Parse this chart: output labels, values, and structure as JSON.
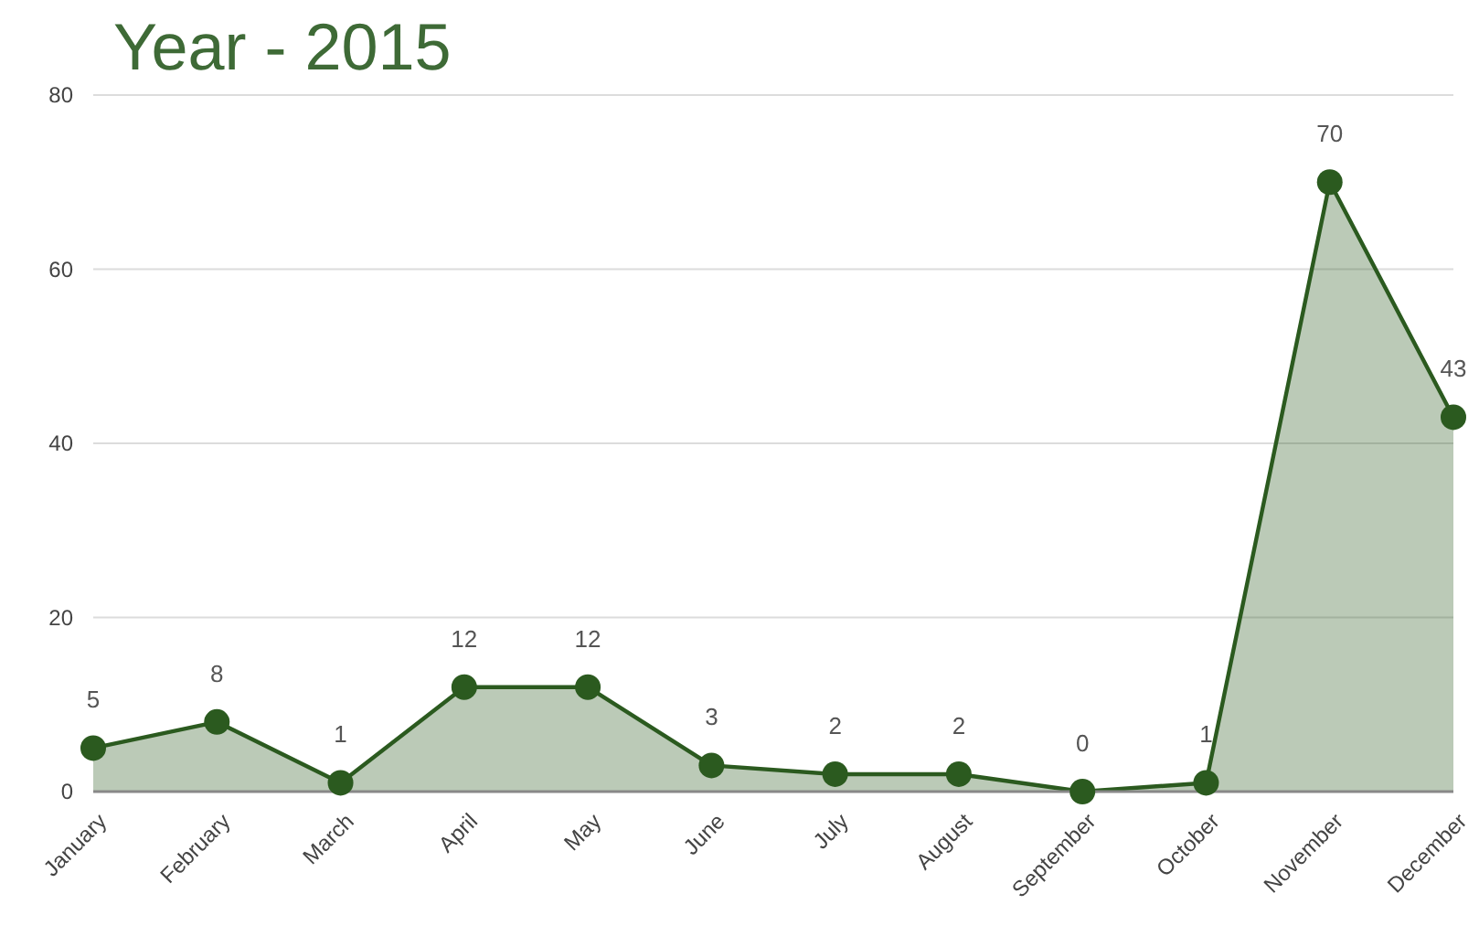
{
  "chart_data": {
    "type": "area",
    "title": "Year - 2015",
    "categories": [
      "January",
      "February",
      "March",
      "April",
      "May",
      "June",
      "July",
      "August",
      "September",
      "October",
      "November",
      "December"
    ],
    "series": [
      {
        "color": "#2b5a1f",
        "values": [
          5,
          8,
          1,
          12,
          12,
          3,
          2,
          2,
          0,
          1,
          70,
          43
        ]
      }
    ],
    "ylim": [
      0,
      80
    ],
    "yticks": [
      0,
      20,
      40,
      60,
      80
    ],
    "grid": "y",
    "marker": "circle",
    "line_style": "solid",
    "data_labels": true
  }
}
